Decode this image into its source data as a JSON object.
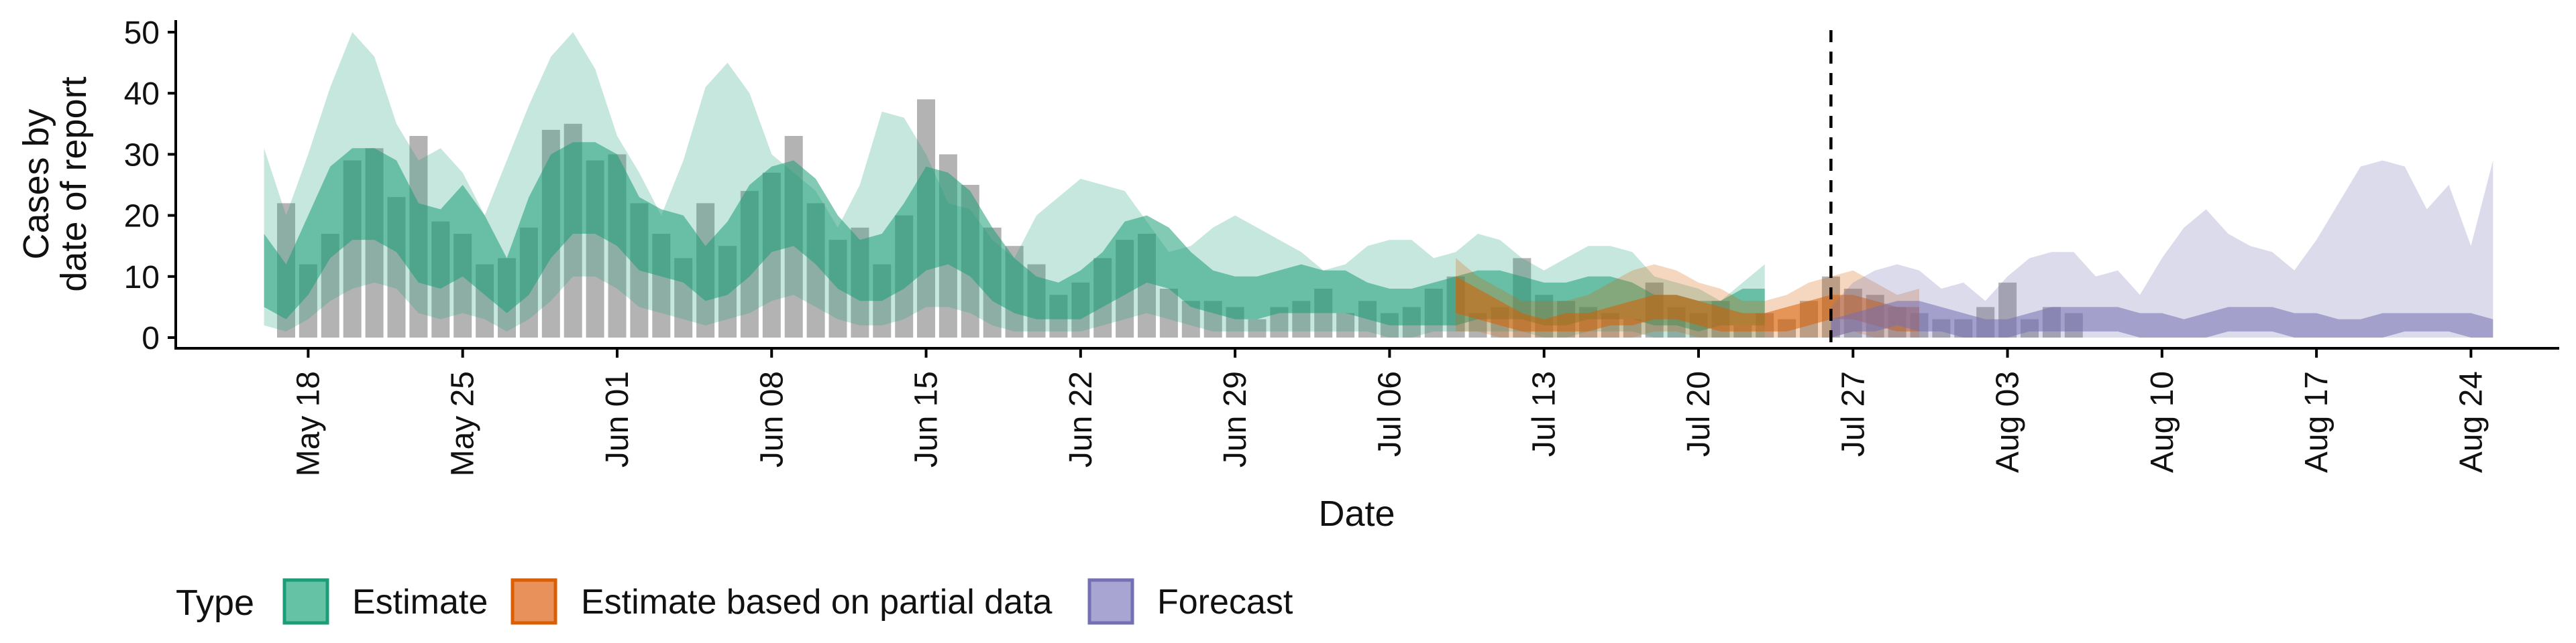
{
  "chart_data": {
    "type": "bar+area",
    "ylabel_lines": [
      "Cases by",
      "date of report"
    ],
    "xlabel": "Date",
    "ylim": [
      0,
      50
    ],
    "yticks": [
      0,
      10,
      20,
      30,
      40,
      50
    ],
    "xlim": [
      "2020-05-12",
      "2020-08-28"
    ],
    "xticks": [
      {
        "date": "2020-05-18",
        "label": "May 18"
      },
      {
        "date": "2020-05-25",
        "label": "May 25"
      },
      {
        "date": "2020-06-01",
        "label": "Jun 01"
      },
      {
        "date": "2020-06-08",
        "label": "Jun 08"
      },
      {
        "date": "2020-06-15",
        "label": "Jun 15"
      },
      {
        "date": "2020-06-22",
        "label": "Jun 22"
      },
      {
        "date": "2020-06-29",
        "label": "Jun 29"
      },
      {
        "date": "2020-07-06",
        "label": "Jul 06"
      },
      {
        "date": "2020-07-13",
        "label": "Jul 13"
      },
      {
        "date": "2020-07-20",
        "label": "Jul 20"
      },
      {
        "date": "2020-07-27",
        "label": "Jul 27"
      },
      {
        "date": "2020-08-03",
        "label": "Aug 03"
      },
      {
        "date": "2020-08-10",
        "label": "Aug 10"
      },
      {
        "date": "2020-08-17",
        "label": "Aug 17"
      },
      {
        "date": "2020-08-24",
        "label": "Aug 24"
      }
    ],
    "forecast_date": "2020-07-26",
    "grid": false,
    "bars": {
      "start_date": "2020-05-17",
      "color": "#a6a6a6",
      "values": [
        22,
        12,
        17,
        29,
        31,
        23,
        33,
        19,
        17,
        12,
        13,
        18,
        34,
        35,
        29,
        30,
        22,
        17,
        13,
        22,
        15,
        24,
        27,
        33,
        22,
        16,
        18,
        12,
        20,
        39,
        30,
        25,
        18,
        15,
        12,
        7,
        9,
        13,
        16,
        17,
        8,
        6,
        6,
        5,
        3,
        5,
        6,
        8,
        4,
        6,
        4,
        5,
        8,
        10,
        4,
        5,
        13,
        7,
        6,
        5,
        4,
        3,
        9,
        5,
        4,
        6,
        2,
        4,
        3,
        6,
        10,
        8,
        7,
        5,
        4,
        3,
        3,
        5,
        9,
        3,
        5,
        4
      ]
    },
    "series": [
      {
        "name": "Estimate",
        "color": "#1b9e77",
        "start_date": "2020-05-16",
        "median": [
          10,
          7,
          12,
          20,
          26,
          26,
          22,
          15,
          15,
          18,
          14,
          8,
          14,
          22,
          26,
          26,
          23,
          17,
          16,
          14,
          11,
          13,
          17,
          22,
          24,
          20,
          14,
          11,
          12,
          16,
          21,
          21,
          18,
          13,
          9,
          7,
          6,
          7,
          10,
          14,
          16,
          14,
          10,
          8,
          6,
          6,
          7,
          8,
          7,
          7,
          6,
          5,
          5,
          5,
          6,
          7,
          7,
          6,
          5,
          6,
          7,
          7,
          6,
          5,
          4,
          4,
          4,
          5,
          5
        ],
        "inner_lo": [
          5,
          3,
          7,
          13,
          16,
          16,
          14,
          9,
          8,
          10,
          7,
          4,
          7,
          13,
          17,
          17,
          15,
          11,
          10,
          9,
          6,
          7,
          10,
          14,
          15,
          12,
          8,
          6,
          6,
          8,
          11,
          12,
          10,
          6,
          4,
          3,
          3,
          3,
          5,
          7,
          9,
          8,
          5,
          4,
          3,
          3,
          4,
          4,
          4,
          4,
          3,
          2,
          2,
          2,
          2,
          3,
          3,
          3,
          2,
          2,
          3,
          3,
          3,
          2,
          2,
          1,
          2,
          2,
          2
        ],
        "inner_hi": [
          17,
          12,
          20,
          28,
          31,
          31,
          29,
          22,
          21,
          25,
          20,
          13,
          23,
          30,
          32,
          32,
          30,
          23,
          21,
          20,
          15,
          19,
          25,
          28,
          29,
          26,
          20,
          16,
          17,
          22,
          28,
          27,
          24,
          18,
          13,
          10,
          9,
          11,
          14,
          19,
          20,
          18,
          14,
          11,
          10,
          10,
          11,
          12,
          11,
          11,
          9,
          8,
          8,
          9,
          10,
          11,
          11,
          10,
          9,
          9,
          10,
          10,
          9,
          7,
          7,
          6,
          6,
          8,
          8
        ],
        "outer_lo": [
          2,
          1,
          3,
          6,
          8,
          9,
          8,
          4,
          3,
          4,
          3,
          1,
          3,
          6,
          10,
          10,
          8,
          5,
          4,
          3,
          2,
          3,
          4,
          6,
          7,
          5,
          3,
          2,
          2,
          3,
          5,
          5,
          4,
          2,
          1,
          1,
          1,
          1,
          2,
          3,
          4,
          3,
          2,
          1,
          1,
          1,
          1,
          1,
          1,
          1,
          1,
          0,
          0,
          1,
          1,
          1,
          1,
          1,
          0,
          0,
          1,
          1,
          1,
          0,
          0,
          0,
          0,
          0,
          0
        ],
        "outer_hi": [
          31,
          20,
          30,
          41,
          50,
          46,
          35,
          29,
          31,
          27,
          20,
          29,
          38,
          46,
          50,
          44,
          33,
          27,
          20,
          29,
          41,
          45,
          40,
          30,
          27,
          24,
          18,
          25,
          37,
          36,
          30,
          22,
          21,
          16,
          13,
          20,
          23,
          26,
          25,
          24,
          19,
          14,
          15,
          18,
          20,
          18,
          16,
          14,
          11,
          12,
          15,
          16,
          16,
          13,
          14,
          17,
          16,
          13,
          11,
          13,
          15,
          15,
          14,
          10,
          9,
          8,
          6,
          9,
          12
        ]
      },
      {
        "name": "Estimate based on partial data",
        "color": "#d95f02",
        "start_date": "2020-07-09",
        "median": [
          7,
          6,
          4,
          3,
          2,
          2,
          2,
          3,
          4,
          5,
          5,
          4,
          3,
          2,
          2,
          3,
          4,
          5,
          5,
          4,
          3,
          3
        ],
        "inner_lo": [
          4,
          3,
          2,
          1,
          1,
          1,
          1,
          2,
          2,
          3,
          3,
          2,
          1,
          1,
          1,
          1,
          2,
          3,
          3,
          2,
          1,
          1
        ],
        "inner_hi": [
          10,
          8,
          6,
          4,
          3,
          4,
          4,
          5,
          6,
          7,
          7,
          6,
          5,
          4,
          4,
          5,
          6,
          7,
          7,
          6,
          5,
          5
        ],
        "outer_lo": [
          1,
          1,
          0,
          0,
          0,
          0,
          0,
          0,
          0,
          1,
          1,
          0,
          0,
          0,
          0,
          0,
          0,
          0,
          1,
          0,
          0,
          0
        ],
        "outer_hi": [
          13,
          10,
          8,
          6,
          6,
          6,
          7,
          9,
          11,
          12,
          11,
          9,
          8,
          6,
          6,
          7,
          9,
          10,
          11,
          9,
          7,
          8
        ]
      },
      {
        "name": "Forecast",
        "color": "#7570b3",
        "start_date": "2020-07-26",
        "median": [
          2,
          3,
          4,
          4,
          4,
          3,
          3,
          2,
          2,
          3,
          4,
          4,
          4,
          4,
          3,
          3,
          2,
          3,
          4,
          4,
          4,
          3,
          3,
          2,
          2,
          3,
          3,
          3,
          3,
          3,
          2
        ],
        "inner_lo": [
          0,
          1,
          1,
          2,
          1,
          1,
          0,
          0,
          0,
          1,
          1,
          1,
          1,
          1,
          0,
          0,
          0,
          0,
          1,
          1,
          1,
          0,
          0,
          0,
          0,
          0,
          1,
          1,
          1,
          0,
          0
        ],
        "inner_hi": [
          3,
          4,
          5,
          6,
          6,
          5,
          4,
          3,
          3,
          4,
          5,
          5,
          5,
          5,
          4,
          4,
          3,
          4,
          5,
          5,
          5,
          4,
          4,
          3,
          3,
          4,
          4,
          4,
          4,
          4,
          3
        ],
        "outer_lo": [
          0,
          0,
          0,
          0,
          0,
          0,
          0,
          0,
          0,
          0,
          0,
          0,
          0,
          0,
          0,
          0,
          0,
          0,
          0,
          0,
          0,
          0,
          0,
          0,
          0,
          0,
          0,
          0,
          0,
          0,
          0
        ],
        "outer_hi": [
          5,
          9,
          11,
          12,
          11,
          8,
          9,
          6,
          10,
          13,
          14,
          14,
          10,
          11,
          7,
          13,
          18,
          21,
          17,
          15,
          14,
          11,
          16,
          22,
          28,
          29,
          28,
          21,
          25,
          15,
          29
        ]
      }
    ],
    "legend": {
      "title": "Type",
      "position": "bottom",
      "items": [
        {
          "label": "Estimate",
          "fill": "#66c2a5",
          "border": "#1b9e77"
        },
        {
          "label": "Estimate based on partial data",
          "fill": "#e8915a",
          "border": "#d95f02"
        },
        {
          "label": "Forecast",
          "fill": "#a9a5d3",
          "border": "#7570b3"
        }
      ]
    }
  }
}
